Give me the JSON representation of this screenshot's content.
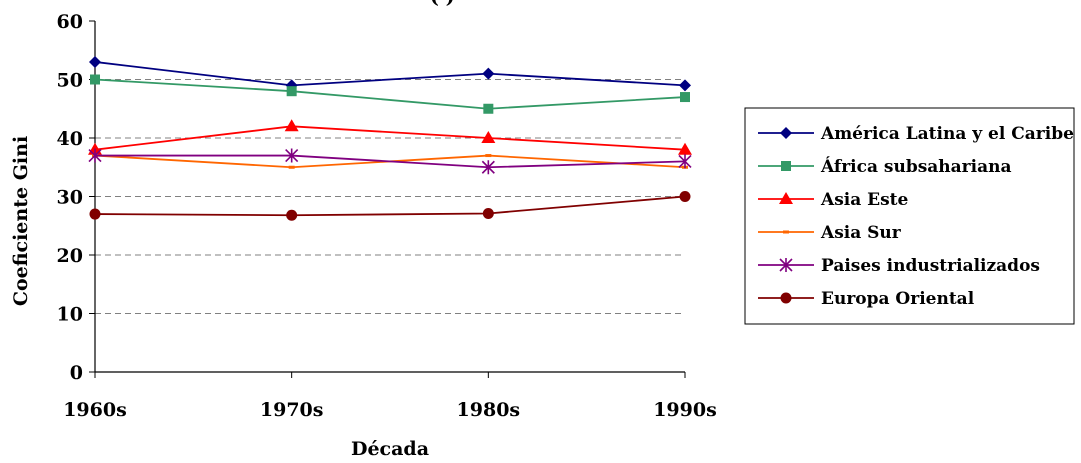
{
  "chart_data": {
    "type": "line",
    "title": "(Promedio por década)",
    "title_visible_fragment": "(                    )",
    "xlabel": "Década",
    "ylabel": "Coeficiente Gini",
    "categories": [
      "1960s",
      "1970s",
      "1980s",
      "1990s"
    ],
    "ylim": [
      0,
      60
    ],
    "yticks": [
      0,
      10,
      20,
      30,
      40,
      50,
      60
    ],
    "grid": "horizontal-dashed",
    "legend_position": "right",
    "series": [
      {
        "name": "América Latina y el Caribe",
        "values": [
          53,
          49,
          51,
          49
        ],
        "color": "#000080",
        "marker": "diamond"
      },
      {
        "name": "África subsahariana",
        "values": [
          50,
          48,
          45,
          47
        ],
        "color": "#339966",
        "marker": "square"
      },
      {
        "name": "Asia Este",
        "values": [
          38,
          42,
          40,
          38
        ],
        "color": "#ff0000",
        "marker": "triangle"
      },
      {
        "name": "Asia Sur",
        "values": [
          37,
          35,
          37,
          35
        ],
        "color": "#ff6600",
        "marker": "dash"
      },
      {
        "name": "Paises industrializados",
        "values": [
          37,
          37,
          35,
          36
        ],
        "color": "#800080",
        "marker": "star"
      },
      {
        "name": "Europa Oriental",
        "values": [
          27,
          26.8,
          27.1,
          30
        ],
        "color": "#800000",
        "marker": "circle"
      }
    ]
  }
}
